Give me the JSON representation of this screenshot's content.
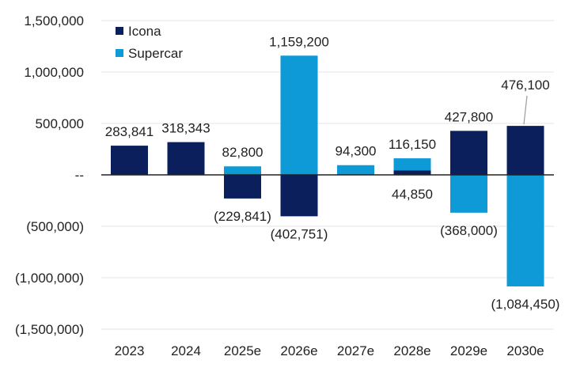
{
  "chart_data": {
    "type": "bar",
    "stacked": true,
    "categories": [
      "2023",
      "2024",
      "2025e",
      "2026e",
      "2027e",
      "2028e",
      "2029e",
      "2030e"
    ],
    "series": [
      {
        "name": "Icona",
        "color": "#0b1f5c",
        "values": [
          283841,
          318343,
          -229841,
          -402751,
          0,
          44850,
          427800,
          476100
        ]
      },
      {
        "name": "Supercar",
        "color": "#0e9ad7",
        "values": [
          0,
          0,
          82800,
          1159200,
          94300,
          116150,
          -368000,
          -1084450
        ]
      }
    ],
    "ylim": [
      -1500000,
      1500000
    ],
    "yticks": [
      {
        "value": 1500000,
        "label": "1,500,000"
      },
      {
        "value": 1000000,
        "label": "1,000,000"
      },
      {
        "value": 500000,
        "label": "500,000"
      },
      {
        "value": 0,
        "label": "--"
      },
      {
        "value": -500000,
        "label": "(500,000)"
      },
      {
        "value": -1000000,
        "label": "(1,000,000)"
      },
      {
        "value": -1500000,
        "label": "(1,500,000)"
      }
    ],
    "data_labels": [
      {
        "category": "2023",
        "text": "283,841"
      },
      {
        "category": "2024",
        "text": "318,343"
      },
      {
        "category": "2025e",
        "text": "82,800"
      },
      {
        "category": "2025e",
        "text": "(229,841)"
      },
      {
        "category": "2026e",
        "text": "1,159,200"
      },
      {
        "category": "2026e",
        "text": "(402,751)"
      },
      {
        "category": "2027e",
        "text": "94,300"
      },
      {
        "category": "2028e",
        "text": "116,150"
      },
      {
        "category": "2028e",
        "text": "44,850"
      },
      {
        "category": "2029e",
        "text": "427,800"
      },
      {
        "category": "2029e",
        "text": "(368,000)"
      },
      {
        "category": "2030e",
        "text": "476,100"
      },
      {
        "category": "2030e",
        "text": "(1,084,450)"
      }
    ],
    "legend": {
      "position": "top-left",
      "entries": [
        "Icona",
        "Supercar"
      ]
    },
    "grid": true,
    "colors": {
      "grid": "#e6e6e6",
      "zero_line": "#222222"
    }
  }
}
